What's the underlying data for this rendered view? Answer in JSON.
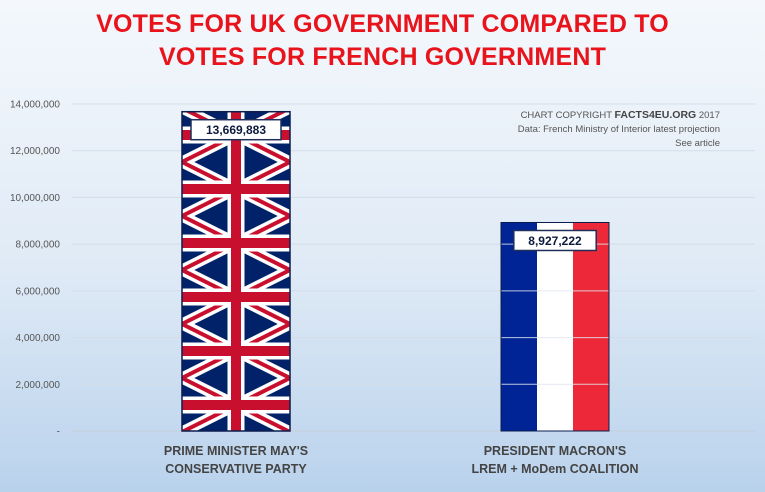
{
  "title_lines": [
    "VOTES FOR UK GOVERNMENT COMPARED TO",
    "VOTES FOR FRENCH GOVERNMENT"
  ],
  "credits": {
    "prefix": "CHART COPYRIGHT ",
    "brand": "FACTS4EU.ORG",
    "year": " 2017",
    "line2": "Data: French Ministry of Interior latest projection",
    "line3": "See article"
  },
  "colors": {
    "title": "#e8131b",
    "uk_blue": "#012169",
    "uk_red": "#C8102E",
    "fr_blue": "#002395",
    "fr_red": "#ED2939"
  },
  "chart_data": {
    "type": "bar",
    "title": "VOTES FOR UK GOVERNMENT COMPARED TO VOTES FOR FRENCH GOVERNMENT",
    "categories": [
      [
        "PRIME MINISTER MAY'S",
        "CONSERVATIVE PARTY"
      ],
      [
        "PRESIDENT MACRON'S",
        "LREM + MoDem COALITION"
      ]
    ],
    "values": [
      13669883,
      8927222
    ],
    "value_labels": [
      "13,669,883",
      "8,927,222"
    ],
    "bar_fills": [
      "union-jack-pattern",
      "french-tricolour"
    ],
    "ylim": [
      0,
      14000000
    ],
    "yticks": [
      0,
      2000000,
      4000000,
      6000000,
      8000000,
      10000000,
      12000000,
      14000000
    ],
    "ytick_labels": [
      "-",
      "2,000,000",
      "4,000,000",
      "6,000,000",
      "8,000,000",
      "10,000,000",
      "12,000,000",
      "14,000,000"
    ],
    "xlabel": "",
    "ylabel": "",
    "grid": true,
    "legend": "none"
  }
}
